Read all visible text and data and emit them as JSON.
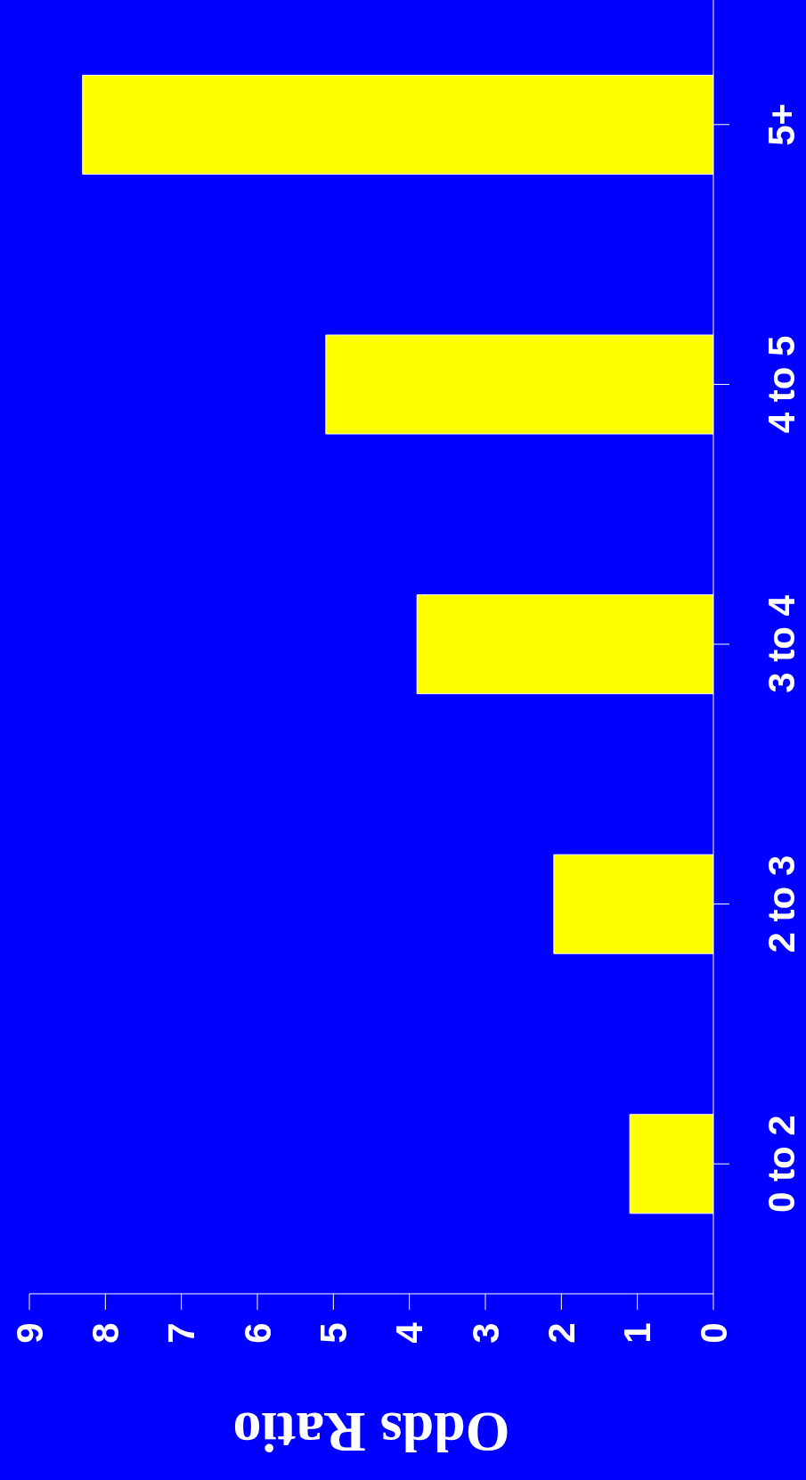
{
  "chart_data": {
    "type": "bar",
    "orientation": "horizontal",
    "xlabel": "Odds Ratio",
    "categories": [
      "5+",
      "4 to 5",
      "3 to 4",
      "2 to 3",
      "0 to 2"
    ],
    "values": [
      8.3,
      5.1,
      3.9,
      2.1,
      1.1
    ],
    "color": "#ffff00",
    "xlim": [
      9,
      0
    ],
    "xticks": [
      9,
      8,
      7,
      6,
      5,
      4,
      3,
      2,
      1,
      0
    ]
  }
}
